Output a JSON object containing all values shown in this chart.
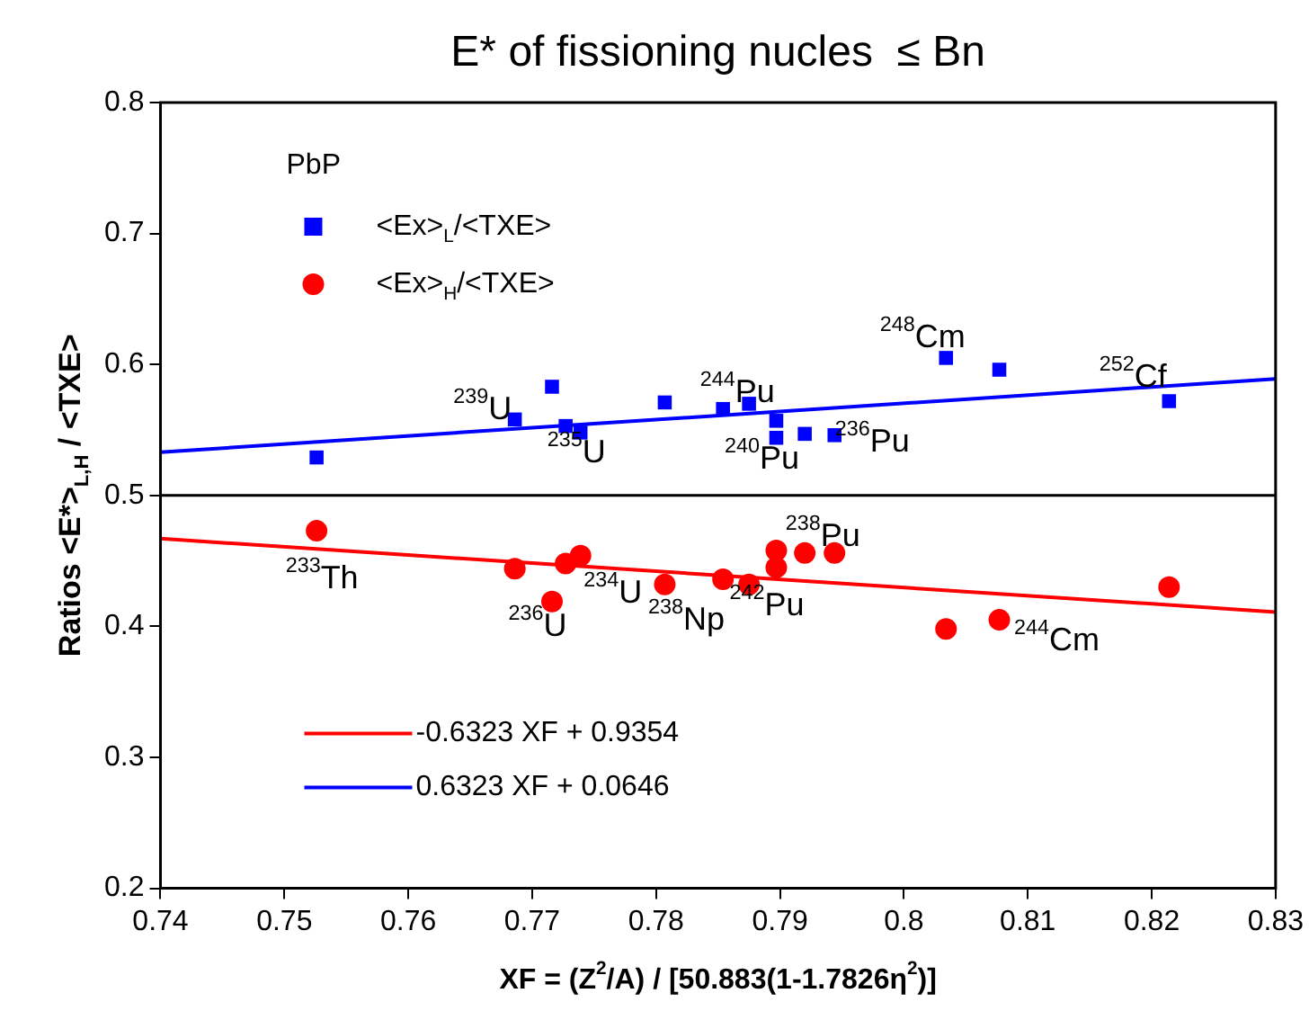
{
  "chart_data": {
    "type": "scatter",
    "title": "E* of fissioning nucles  ≤ Bn",
    "xlabel": "XF = (Z$^{2}$/A) / [50.883(1-1.7826η$^{2}$)]",
    "ylabel": "Ratios <E*>$_{L,H}$ / <TXE>",
    "legend_title": "PbP",
    "legend": "left",
    "xlim": [
      0.74,
      0.83
    ],
    "xticks": [
      0.74,
      0.75,
      0.76,
      0.77,
      0.78,
      0.79,
      0.8,
      0.81,
      0.82,
      0.83
    ],
    "ylim": [
      0.2,
      0.8
    ],
    "yticks": [
      0.2,
      0.3,
      0.4,
      0.5,
      0.6,
      0.7,
      0.8
    ],
    "grid": false,
    "series": [
      {
        "name": "<Ex>$_{L}$/<TXE>",
        "color": "#0000ff",
        "marker": "square",
        "x": [
          0.7526,
          0.7686,
          0.7716,
          0.7727,
          0.7739,
          0.7807,
          0.7854,
          0.7875,
          0.7897,
          0.7897,
          0.792,
          0.7944,
          0.8034,
          0.8077,
          0.8214
        ],
        "values": [
          0.529,
          0.558,
          0.583,
          0.553,
          0.548,
          0.571,
          0.566,
          0.57,
          0.557,
          0.544,
          0.547,
          0.546,
          0.605,
          0.596,
          0.572
        ]
      },
      {
        "name": "<Ex>$_{H}$/<TXE>",
        "color": "#ff0000",
        "marker": "circle",
        "x": [
          0.7526,
          0.7686,
          0.7716,
          0.7727,
          0.7739,
          0.7807,
          0.7854,
          0.7875,
          0.7897,
          0.7897,
          0.792,
          0.7944,
          0.8034,
          0.8077,
          0.8214
        ],
        "values": [
          0.473,
          0.444,
          0.419,
          0.448,
          0.454,
          0.432,
          0.436,
          0.432,
          0.458,
          0.445,
          0.456,
          0.456,
          0.398,
          0.405,
          0.43
        ]
      },
      {
        "name": "-0.6323 XF + 0.9354",
        "type": "line",
        "color": "#ff0000",
        "marker": "none",
        "x": [
          0.74,
          0.83
        ],
        "values": [
          0.467,
          0.411
        ]
      },
      {
        "name": "0.6323 XF + 0.0646",
        "type": "line",
        "color": "#0000ff",
        "marker": "none",
        "x": [
          0.74,
          0.83
        ],
        "values": [
          0.533,
          0.589
        ]
      }
    ],
    "ref_lines": [
      {
        "axis": "y",
        "value": 0.5,
        "color": "#000000"
      }
    ],
    "annotations": [
      {
        "text": "$^{239}$U",
        "x": 0.7686,
        "y": 0.558
      },
      {
        "text": "$^{235}$U",
        "x": 0.7727,
        "y": 0.553
      },
      {
        "text": "$^{244}$Pu",
        "x": 0.7854,
        "y": 0.566
      },
      {
        "text": "$^{240}$Pu",
        "x": 0.7897,
        "y": 0.544
      },
      {
        "text": "$^{236}$Pu",
        "x": 0.7944,
        "y": 0.546
      },
      {
        "text": "$^{248}$Cm",
        "x": 0.8034,
        "y": 0.605
      },
      {
        "text": "$^{252}$Cf",
        "x": 0.8214,
        "y": 0.572
      },
      {
        "text": "$^{233}$Th",
        "x": 0.7526,
        "y": 0.473
      },
      {
        "text": "$^{236}$U",
        "x": 0.7716,
        "y": 0.419
      },
      {
        "text": "$^{234}$U",
        "x": 0.7739,
        "y": 0.454
      },
      {
        "text": "$^{238}$Np",
        "x": 0.7807,
        "y": 0.432
      },
      {
        "text": "$^{242}$Pu",
        "x": 0.7875,
        "y": 0.432
      },
      {
        "text": "$^{238}$Pu",
        "x": 0.792,
        "y": 0.456
      },
      {
        "text": "$^{244}$Cm",
        "x": 0.8077,
        "y": 0.405
      }
    ]
  }
}
